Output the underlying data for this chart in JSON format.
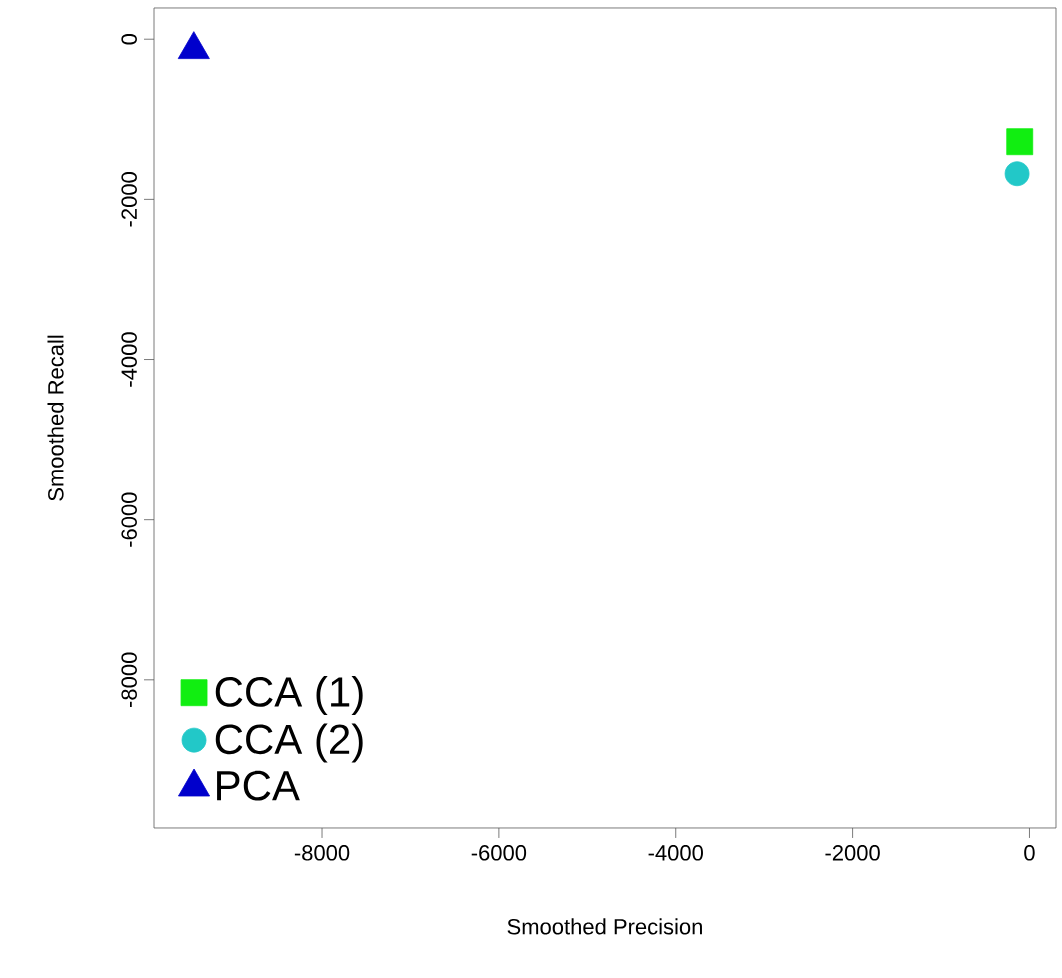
{
  "chart_data": {
    "type": "scatter",
    "xlabel": "Smoothed Precision",
    "ylabel": "Smoothed Recall",
    "xlim": [
      -9900,
      300
    ],
    "ylim": [
      -9850,
      390
    ],
    "xticks": [
      -8000,
      -6000,
      -4000,
      -2000,
      0
    ],
    "yticks": [
      -8000,
      -6000,
      -4000,
      -2000,
      0
    ],
    "legend": "bottom left",
    "series": [
      {
        "name": "CCA (1)",
        "color": "#11ee11",
        "marker": "square",
        "x": [
          -110
        ],
        "values": [
          -1280
        ]
      },
      {
        "name": "CCA (2)",
        "color": "#22c8c8",
        "marker": "circle",
        "x": [
          -140
        ],
        "values": [
          -1680
        ]
      },
      {
        "name": "PCA",
        "color": "#0000cc",
        "marker": "triangle",
        "x": [
          -9450
        ],
        "values": [
          -130
        ]
      }
    ]
  }
}
